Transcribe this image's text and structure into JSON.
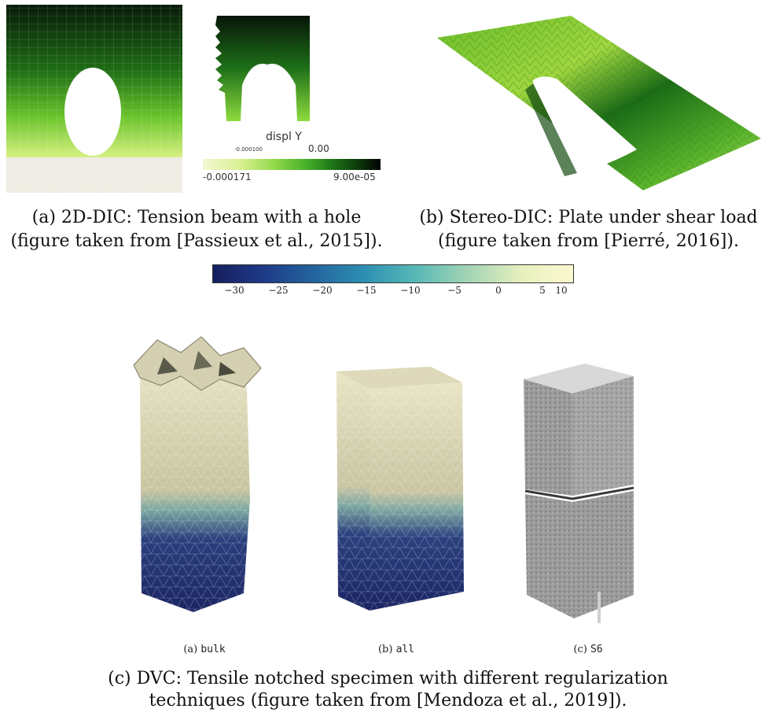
{
  "panels": {
    "a": {
      "caption_line1": "(a) 2D-DIC: Tension beam with a hole",
      "caption_line2": "(figure taken from [Passieux et al., 2015]).",
      "legend": {
        "title": "displ Y",
        "tick_small": "-0.000100",
        "tick_mid": "0.00",
        "min_label": "-0.000171",
        "max_label": "9.00e-05"
      }
    },
    "b": {
      "caption_line1": "(b) Stereo-DIC: Plate under shear load",
      "caption_line2": "(figure taken from [Pierré, 2016])."
    },
    "c": {
      "colorbar_ticks": [
        "−30",
        "−25",
        "−20",
        "−15",
        "−10",
        "−5",
        "0",
        "5",
        "10"
      ],
      "sub_prefix": [
        "(a)",
        "(b)",
        "(c)"
      ],
      "sub_names": [
        "bulk",
        "all",
        "S6"
      ],
      "caption_line1": "(c) DVC: Tensile notched specimen with different regularization",
      "caption_line2": "techniques (figure taken from [Mendoza et al., 2019])."
    }
  },
  "colors": {
    "green_dark": "#0d2a0d",
    "green_mid": "#2f9a1f",
    "green_light": "#c9ee63",
    "viridis_low": "#1d2670",
    "viridis_mid": "#3fa5b8",
    "viridis_high": "#f6f6c2"
  }
}
